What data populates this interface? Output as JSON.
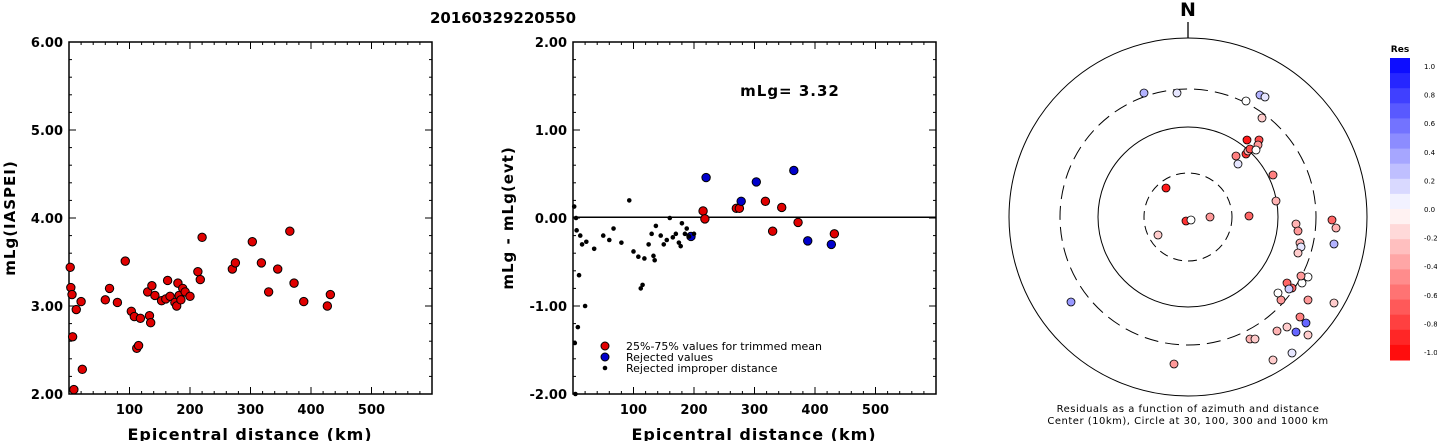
{
  "figure_title": "20160329220550",
  "chart_data": [
    {
      "type": "scatter",
      "ylabel": "mLg(IASPEI)",
      "xlabel": "Epicentral distance (km)",
      "xlim": [
        0,
        600
      ],
      "ylim": [
        2.0,
        6.0
      ],
      "xticks": [
        100,
        200,
        300,
        400,
        500
      ],
      "yticks": [
        "2.00",
        "3.00",
        "4.00",
        "5.00",
        "6.00"
      ],
      "series": [
        {
          "marker_color": "#e00000",
          "points": [
            [
              2,
              3.44
            ],
            [
              3,
              3.21
            ],
            [
              5,
              3.13
            ],
            [
              6,
              2.65
            ],
            [
              8,
              2.05
            ],
            [
              12,
              2.96
            ],
            [
              20,
              3.05
            ],
            [
              22,
              2.28
            ],
            [
              60,
              3.07
            ],
            [
              67,
              3.2
            ],
            [
              80,
              3.04
            ],
            [
              93,
              3.51
            ],
            [
              103,
              2.94
            ],
            [
              108,
              2.88
            ],
            [
              112,
              2.52
            ],
            [
              115,
              2.55
            ],
            [
              118,
              2.86
            ],
            [
              130,
              3.16
            ],
            [
              133,
              2.89
            ],
            [
              135,
              2.81
            ],
            [
              137,
              3.23
            ],
            [
              142,
              3.12
            ],
            [
              153,
              3.06
            ],
            [
              160,
              3.08
            ],
            [
              163,
              3.29
            ],
            [
              167,
              3.11
            ],
            [
              175,
              3.04
            ],
            [
              178,
              3.0
            ],
            [
              180,
              3.26
            ],
            [
              182,
              3.12
            ],
            [
              185,
              3.07
            ],
            [
              188,
              3.2
            ],
            [
              192,
              3.16
            ],
            [
              200,
              3.11
            ],
            [
              213,
              3.39
            ],
            [
              217,
              3.3
            ],
            [
              220,
              3.78
            ],
            [
              270,
              3.42
            ],
            [
              275,
              3.49
            ],
            [
              303,
              3.73
            ],
            [
              318,
              3.49
            ],
            [
              330,
              3.16
            ],
            [
              345,
              3.42
            ],
            [
              365,
              3.85
            ],
            [
              372,
              3.26
            ],
            [
              388,
              3.05
            ],
            [
              427,
              3.0
            ],
            [
              432,
              3.13
            ]
          ]
        }
      ]
    },
    {
      "type": "scatter",
      "ylabel": "mLg - mLg(evt)",
      "xlabel": "Epicentral distance (km)",
      "xlim": [
        0,
        600
      ],
      "ylim": [
        -2.0,
        2.0
      ],
      "xticks": [
        100,
        200,
        300,
        400,
        500
      ],
      "yticks": [
        "-2.00",
        "-1.00",
        "0.00",
        "1.00",
        "2.00"
      ],
      "annotation": "mLg= 3.32",
      "legend": {
        "placement": "bottom-left",
        "entries": [
          {
            "label": "25%-75% values for trimmed mean",
            "color": "#e00000",
            "marker": "large"
          },
          {
            "label": "Rejected values",
            "color": "#0000cc",
            "marker": "large"
          },
          {
            "label": "Rejected improper distance",
            "color": "#000000",
            "marker": "small"
          }
        ]
      },
      "series": [
        {
          "name": "25%-75% values for trimmed mean",
          "color": "#e00000",
          "points": [
            [
              215,
              0.08
            ],
            [
              218,
              -0.01
            ],
            [
              270,
              0.11
            ],
            [
              275,
              0.11
            ],
            [
              318,
              0.19
            ],
            [
              330,
              -0.15
            ],
            [
              345,
              0.12
            ],
            [
              372,
              -0.05
            ],
            [
              432,
              -0.18
            ]
          ]
        },
        {
          "name": "Rejected values",
          "color": "#0000cc",
          "points": [
            [
              195,
              -0.21
            ],
            [
              220,
              0.46
            ],
            [
              278,
              0.19
            ],
            [
              303,
              0.41
            ],
            [
              365,
              0.54
            ],
            [
              388,
              -0.26
            ],
            [
              427,
              -0.3
            ]
          ]
        },
        {
          "name": "Rejected improper distance",
          "color": "#000000",
          "points": [
            [
              2,
              0.13
            ],
            [
              3,
              -1.42
            ],
            [
              4,
              -2.0
            ],
            [
              5,
              0.0
            ],
            [
              6,
              -0.14
            ],
            [
              8,
              -1.24
            ],
            [
              10,
              -0.65
            ],
            [
              12,
              -0.2
            ],
            [
              15,
              -0.3
            ],
            [
              20,
              -1.0
            ],
            [
              22,
              -0.27
            ],
            [
              35,
              -0.35
            ],
            [
              50,
              -0.2
            ],
            [
              60,
              -0.25
            ],
            [
              67,
              -0.12
            ],
            [
              80,
              -0.28
            ],
            [
              93,
              0.2
            ],
            [
              100,
              -0.38
            ],
            [
              108,
              -0.44
            ],
            [
              112,
              -0.8
            ],
            [
              115,
              -0.76
            ],
            [
              118,
              -0.46
            ],
            [
              125,
              -0.3
            ],
            [
              130,
              -0.18
            ],
            [
              133,
              -0.43
            ],
            [
              135,
              -0.48
            ],
            [
              137,
              -0.09
            ],
            [
              145,
              -0.2
            ],
            [
              150,
              -0.3
            ],
            [
              155,
              -0.25
            ],
            [
              160,
              0.0
            ],
            [
              165,
              -0.22
            ],
            [
              170,
              -0.18
            ],
            [
              175,
              -0.28
            ],
            [
              178,
              -0.32
            ],
            [
              180,
              -0.06
            ],
            [
              185,
              -0.18
            ],
            [
              188,
              -0.12
            ],
            [
              192,
              -0.21
            ],
            [
              200,
              -0.18
            ]
          ]
        }
      ]
    },
    {
      "type": "scatter",
      "subtype": "polar azimuth-distance",
      "north_label": "N",
      "caption_lines": [
        "Residuals as a function of azimuth and distance",
        "Center (10km), Circle at 30, 100, 300 and 1000 km"
      ],
      "rings_km": [
        10,
        30,
        100,
        300,
        1000
      ],
      "colorbar": {
        "title": "Res",
        "range": [
          -1.0,
          1.0
        ],
        "tick_labels": [
          "1.0",
          "0.8",
          "0.6",
          "0.4",
          "0.2",
          "0.0",
          "-0.2",
          "-0.4",
          "-0.6",
          "-0.8",
          "-1.0"
        ],
        "positive_color": "#0000ff",
        "negative_color": "#ff0000"
      },
      "stations": [
        {
          "dx": -2,
          "dy": 4,
          "res": -0.8
        },
        {
          "dx": 3,
          "dy": 3,
          "res": 0.0
        },
        {
          "dx": 22,
          "dy": 0,
          "res": -0.4
        },
        {
          "dx": -22,
          "dy": -29,
          "res": -0.9
        },
        {
          "dx": -30,
          "dy": 18,
          "res": -0.2
        },
        {
          "dx": 58,
          "dy": -116,
          "res": 0.0
        },
        {
          "dx": 59,
          "dy": -77,
          "res": -0.9
        },
        {
          "dx": 61,
          "dy": -1,
          "res": -0.6
        },
        {
          "dx": 71,
          "dy": -77,
          "res": -0.7
        },
        {
          "dx": 70,
          "dy": -72,
          "res": -0.4
        },
        {
          "dx": 74,
          "dy": -99,
          "res": -0.2
        },
        {
          "dx": 72,
          "dy": -122,
          "res": 0.3
        },
        {
          "dx": 77,
          "dy": -120,
          "res": 0.1
        },
        {
          "dx": 48,
          "dy": -61,
          "res": -0.5
        },
        {
          "dx": 50,
          "dy": -53,
          "res": 0.1
        },
        {
          "dx": 58,
          "dy": -63,
          "res": -0.8
        },
        {
          "dx": 60,
          "dy": -66,
          "res": -0.3
        },
        {
          "dx": 62,
          "dy": -68,
          "res": -0.7
        },
        {
          "dx": 68,
          "dy": -67,
          "res": 0.0
        },
        {
          "dx": 85,
          "dy": -42,
          "res": -0.5
        },
        {
          "dx": 88,
          "dy": -16,
          "res": -0.3
        },
        {
          "dx": 108,
          "dy": 7,
          "res": -0.3
        },
        {
          "dx": 110,
          "dy": 14,
          "res": -0.4
        },
        {
          "dx": 112,
          "dy": 26,
          "res": -0.3
        },
        {
          "dx": 113,
          "dy": 30,
          "res": 0.1
        },
        {
          "dx": 110,
          "dy": 36,
          "res": -0.2
        },
        {
          "dx": 120,
          "dy": 60,
          "res": 0.0
        },
        {
          "dx": 114,
          "dy": 66,
          "res": 0.0
        },
        {
          "dx": 113,
          "dy": 59,
          "res": -0.4
        },
        {
          "dx": 104,
          "dy": 71,
          "res": -0.6
        },
        {
          "dx": 99,
          "dy": 66,
          "res": -0.6
        },
        {
          "dx": 101,
          "dy": 72,
          "res": 0.2
        },
        {
          "dx": 93,
          "dy": 83,
          "res": -0.4
        },
        {
          "dx": 90,
          "dy": 76,
          "res": 0.0
        },
        {
          "dx": 120,
          "dy": 83,
          "res": -0.4
        },
        {
          "dx": 112,
          "dy": 100,
          "res": -0.5
        },
        {
          "dx": 146,
          "dy": 86,
          "res": -0.2
        },
        {
          "dx": 146,
          "dy": 27,
          "res": 0.3
        },
        {
          "dx": 118,
          "dy": 106,
          "res": 0.6
        },
        {
          "dx": 148,
          "dy": 11,
          "res": -0.3
        },
        {
          "dx": 144,
          "dy": 3,
          "res": -0.6
        },
        {
          "dx": 62,
          "dy": 122,
          "res": -0.3
        },
        {
          "dx": 67,
          "dy": 122,
          "res": -0.2
        },
        {
          "dx": 85,
          "dy": 143,
          "res": -0.2
        },
        {
          "dx": 89,
          "dy": 114,
          "res": -0.3
        },
        {
          "dx": 99,
          "dy": 110,
          "res": -0.2
        },
        {
          "dx": 108,
          "dy": 115,
          "res": 0.6
        },
        {
          "dx": 120,
          "dy": 118,
          "res": -0.2
        },
        {
          "dx": 104,
          "dy": 136,
          "res": 0.1
        },
        {
          "dx": -117,
          "dy": 85,
          "res": 0.4
        },
        {
          "dx": -11,
          "dy": -124,
          "res": 0.1
        },
        {
          "dx": -44,
          "dy": -124,
          "res": 0.3
        },
        {
          "dx": -14,
          "dy": 147,
          "res": -0.4
        }
      ]
    }
  ]
}
